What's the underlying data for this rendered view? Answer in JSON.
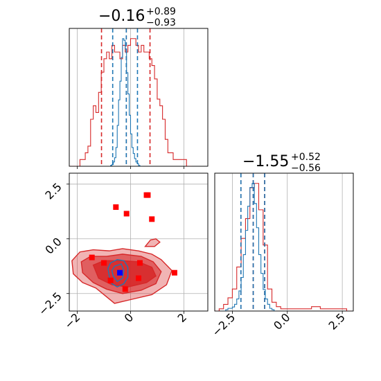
{
  "chart_data": {
    "type": "corner",
    "parameters": [
      {
        "ticks": [
          -2,
          0,
          2
        ],
        "range": [
          -2.3,
          2.9
        ]
      },
      {
        "ticks": [
          -2.5,
          0.0,
          2.5
        ],
        "range": [
          -3.3,
          3.0
        ]
      }
    ],
    "titles": [
      {
        "median": "−0.16",
        "plus": "+0.89",
        "minus": "−0.93"
      },
      {
        "median": "−1.55",
        "plus": "+0.52",
        "minus": "−0.56"
      }
    ],
    "series": [
      {
        "color": "#d62728",
        "quantile_lines": [
          [
            -1.09,
            -0.16,
            0.73
          ],
          [
            -2.11,
            -1.55,
            -1.03
          ]
        ],
        "hist1d": [
          {
            "x": [
              -2.3,
              -2.2,
              -2.1,
              -2.0,
              -1.9,
              -1.8,
              -1.7,
              -1.6,
              -1.5,
              -1.4,
              -1.3,
              -1.2,
              -1.1,
              -1.0,
              -0.9,
              -0.8,
              -0.7,
              -0.6,
              -0.5,
              -0.4,
              -0.3,
              -0.2,
              -0.1,
              0.0,
              0.1,
              0.2,
              0.3,
              0.4,
              0.5,
              0.6,
              0.7,
              0.8,
              0.9,
              1.0,
              1.1,
              1.2,
              1.3,
              1.4,
              1.5,
              1.6,
              1.7,
              1.8,
              1.9,
              2.0,
              2.1,
              2.2
            ],
            "y": [
              0,
              0,
              0,
              0,
              1,
              1,
              2,
              3,
              7,
              9,
              8,
              11,
              14,
              16,
              17,
              16,
              18,
              17,
              17,
              16,
              18,
              17,
              18,
              19,
              19,
              18,
              17,
              18,
              17,
              17,
              16,
              15,
              13,
              10,
              9,
              7,
              4,
              2,
              2,
              1,
              1,
              1,
              1,
              1,
              0,
              0
            ]
          },
          {
            "x": [
              -3.3,
              -3.1,
              -2.9,
              -2.7,
              -2.5,
              -2.3,
              -2.1,
              -1.9,
              -1.7,
              -1.5,
              -1.3,
              -1.1,
              -0.9,
              -0.7,
              -0.5,
              -0.3,
              -0.1,
              0.1,
              0.3,
              0.5,
              0.7,
              0.9,
              1.1,
              1.3,
              1.5,
              1.7,
              1.9,
              2.1,
              2.3,
              2.5,
              2.7
            ],
            "y": [
              0,
              1,
              3,
              6,
              10,
              20,
              33,
              42,
              56,
              58,
              46,
              30,
              10,
              4,
              2,
              1,
              1,
              1,
              1,
              1,
              1,
              1,
              2,
              2,
              1,
              1,
              1,
              1,
              1,
              1,
              0
            ]
          }
        ],
        "contours": [
          [
            [
              -2.2,
              -1.0
            ],
            [
              -1.9,
              -0.6
            ],
            [
              -1.4,
              -0.5
            ],
            [
              -0.8,
              -0.55
            ],
            [
              -0.3,
              -0.45
            ],
            [
              0.3,
              -0.55
            ],
            [
              0.8,
              -0.7
            ],
            [
              1.15,
              -0.95
            ],
            [
              1.55,
              -1.45
            ],
            [
              1.35,
              -2.1
            ],
            [
              0.8,
              -2.55
            ],
            [
              0.1,
              -2.75
            ],
            [
              -0.6,
              -2.95
            ],
            [
              -1.0,
              -2.55
            ],
            [
              -1.3,
              -2.25
            ],
            [
              -1.8,
              -2.0
            ],
            [
              -2.15,
              -1.6
            ]
          ],
          [
            [
              -1.85,
              -1.05
            ],
            [
              -1.5,
              -0.8
            ],
            [
              -0.9,
              -0.8
            ],
            [
              -0.3,
              -0.7
            ],
            [
              0.4,
              -0.8
            ],
            [
              0.85,
              -1.05
            ],
            [
              1.15,
              -1.5
            ],
            [
              0.95,
              -2.05
            ],
            [
              0.4,
              -2.35
            ],
            [
              -0.3,
              -2.5
            ],
            [
              -0.9,
              -2.3
            ],
            [
              -1.4,
              -2.0
            ],
            [
              -1.8,
              -1.55
            ]
          ],
          [
            [
              -1.4,
              -1.2
            ],
            [
              -1.0,
              -1.0
            ],
            [
              -0.3,
              -1.0
            ],
            [
              0.3,
              -1.05
            ],
            [
              0.8,
              -1.3
            ],
            [
              0.95,
              -1.7
            ],
            [
              0.6,
              -2.0
            ],
            [
              -0.1,
              -2.2
            ],
            [
              -0.7,
              -2.1
            ],
            [
              -1.2,
              -1.8
            ]
          ]
        ],
        "contour_islands": [
          [
            [
              0.55,
              -0.35
            ],
            [
              0.9,
              -0.35
            ],
            [
              1.1,
              -0.15
            ],
            [
              0.95,
              0.0
            ],
            [
              0.75,
              -0.05
            ]
          ]
        ],
        "points": [
          {
            "x": 0.6,
            "y": 2.0
          },
          {
            "x": 0.65,
            "y": 2.0
          },
          {
            "x": -0.55,
            "y": 1.45
          },
          {
            "x": -0.15,
            "y": 1.15
          },
          {
            "x": 0.8,
            "y": 0.9
          },
          {
            "x": -1.45,
            "y": -0.85
          },
          {
            "x": -1.0,
            "y": -1.1
          },
          {
            "x": 0.35,
            "y": -1.1
          },
          {
            "x": 1.65,
            "y": -1.55
          },
          {
            "x": 0.3,
            "y": -1.8
          },
          {
            "x": -0.75,
            "y": -1.9
          },
          {
            "x": -0.2,
            "y": -2.3
          }
        ]
      },
      {
        "color": "#1f77b4",
        "quantile_lines": [
          [
            -0.67,
            -0.16,
            0.26
          ],
          [
            -2.11,
            -1.55,
            -1.03
          ]
        ],
        "hist1d": [
          {
            "x": [
              -0.8,
              -0.75,
              -0.7,
              -0.65,
              -0.6,
              -0.55,
              -0.5,
              -0.45,
              -0.4,
              -0.35,
              -0.3,
              -0.25,
              -0.2,
              -0.15,
              -0.1,
              -0.05,
              0.0,
              0.05,
              0.1,
              0.15,
              0.2,
              0.25,
              0.3,
              0.35,
              0.4
            ],
            "y": [
              0,
              1,
              2,
              5,
              10,
              22,
              48,
              78,
              100,
              128,
              150,
              148,
              138,
              110,
              85,
              60,
              38,
              22,
              15,
              9,
              5,
              3,
              1,
              0,
              0
            ]
          },
          {
            "x": [
              -3.0,
              -2.9,
              -2.8,
              -2.7,
              -2.6,
              -2.5,
              -2.4,
              -2.3,
              -2.2,
              -2.1,
              -2.0,
              -1.9,
              -1.8,
              -1.7,
              -1.6,
              -1.5,
              -1.4,
              -1.3,
              -1.2,
              -1.1,
              -1.0,
              -0.9,
              -0.8,
              -0.7,
              -0.6
            ],
            "y": [
              0,
              0,
              1,
              2,
              2,
              3,
              5,
              9,
              15,
              25,
              42,
              60,
              78,
              92,
              95,
              80,
              62,
              42,
              28,
              16,
              9,
              5,
              2,
              1,
              0
            ]
          }
        ],
        "contours": [
          [
            [
              -0.75,
              -1.1
            ],
            [
              -0.5,
              -0.95
            ],
            [
              -0.25,
              -1.0
            ],
            [
              -0.1,
              -1.3
            ],
            [
              -0.1,
              -1.75
            ],
            [
              -0.25,
              -2.05
            ],
            [
              -0.5,
              -2.2
            ],
            [
              -0.7,
              -2.05
            ],
            [
              -0.8,
              -1.7
            ],
            [
              -0.85,
              -1.35
            ]
          ],
          [
            [
              -0.6,
              -1.25
            ],
            [
              -0.35,
              -1.15
            ],
            [
              -0.25,
              -1.45
            ],
            [
              -0.3,
              -1.8
            ],
            [
              -0.5,
              -1.95
            ],
            [
              -0.65,
              -1.7
            ],
            [
              -0.7,
              -1.45
            ]
          ]
        ],
        "contour_islands": [],
        "points": [
          {
            "x": -0.4,
            "y": -1.55
          }
        ]
      }
    ]
  }
}
